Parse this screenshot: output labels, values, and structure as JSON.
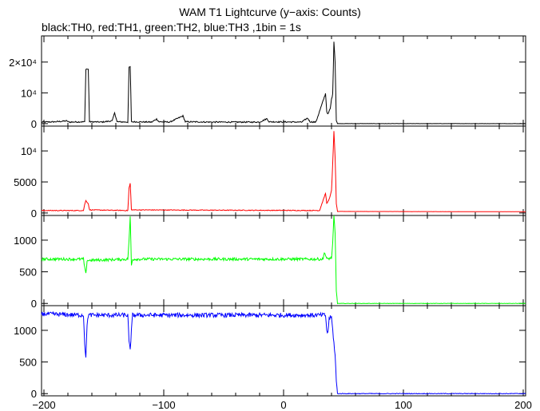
{
  "chart_data": {
    "type": "line",
    "title": "WAM T1 Lightcurve (y−axis: Counts)",
    "subtitle": "black:TH0, red:TH1, green:TH2, blue:TH3 ,1bin = 1s",
    "xlim": [
      -202,
      202
    ],
    "x_ticks": [
      -200,
      -100,
      0,
      100,
      200
    ],
    "x_tick_labels": [
      "−200",
      "−100",
      "0",
      "100",
      "200"
    ],
    "panels": [
      {
        "name": "TH0",
        "color": "#000000",
        "ylim": [
          -800,
          28500
        ],
        "y_ticks": [
          0,
          10000,
          20000
        ],
        "y_tick_labels": [
          "0",
          "10⁴",
          "2×10⁴"
        ],
        "baseline": 500,
        "noise": 200,
        "postlevel": 0,
        "points": [
          [
            -202,
            500
          ],
          [
            -190,
            600
          ],
          [
            -181,
            900
          ],
          [
            -179,
            500
          ],
          [
            -166,
            600
          ],
          [
            -165,
            17800
          ],
          [
            -163,
            17600
          ],
          [
            -162,
            600
          ],
          [
            -152,
            500
          ],
          [
            -143,
            900
          ],
          [
            -141,
            3600
          ],
          [
            -139,
            600
          ],
          [
            -130,
            500
          ],
          [
            -129,
            18200
          ],
          [
            -128,
            18500
          ],
          [
            -127,
            600
          ],
          [
            -110,
            500
          ],
          [
            -106,
            1500
          ],
          [
            -104,
            600
          ],
          [
            -95,
            500
          ],
          [
            -84,
            2500
          ],
          [
            -82,
            600
          ],
          [
            -60,
            500
          ],
          [
            -45,
            500
          ],
          [
            -20,
            500
          ],
          [
            -14,
            1600
          ],
          [
            -12,
            600
          ],
          [
            15,
            500
          ],
          [
            20,
            1800
          ],
          [
            22,
            600
          ],
          [
            27,
            500
          ],
          [
            35,
            9800
          ],
          [
            36,
            4000
          ],
          [
            37,
            3000
          ],
          [
            39,
            5000
          ],
          [
            40,
            8000
          ],
          [
            41,
            9600
          ],
          [
            42,
            26800
          ],
          [
            43,
            20000
          ],
          [
            44,
            1000
          ],
          [
            45,
            0
          ],
          [
            202,
            0
          ]
        ]
      },
      {
        "name": "TH1",
        "color": "#ff0000",
        "ylim": [
          -400,
          14000
        ],
        "y_ticks": [
          0,
          5000,
          10000
        ],
        "y_tick_labels": [
          "0",
          "5000",
          "10⁴"
        ],
        "baseline": 400,
        "noise": 60,
        "postlevel": 200,
        "points": [
          [
            -202,
            400
          ],
          [
            -167,
            400
          ],
          [
            -166,
            1400
          ],
          [
            -165,
            2000
          ],
          [
            -163,
            1500
          ],
          [
            -162,
            500
          ],
          [
            -130,
            400
          ],
          [
            -129,
            4000
          ],
          [
            -128,
            4800
          ],
          [
            -127,
            500
          ],
          [
            30,
            400
          ],
          [
            35,
            3200
          ],
          [
            36,
            1500
          ],
          [
            38,
            2200
          ],
          [
            40,
            3600
          ],
          [
            41,
            8000
          ],
          [
            42,
            13200
          ],
          [
            43,
            9000
          ],
          [
            44,
            1500
          ],
          [
            45,
            250
          ],
          [
            202,
            200
          ]
        ]
      },
      {
        "name": "TH2",
        "color": "#00ff00",
        "ylim": [
          -35,
          1390
        ],
        "y_ticks": [
          0,
          500,
          1000
        ],
        "y_tick_labels": [
          "0",
          "500",
          "1000"
        ],
        "baseline": 700,
        "noise": 22,
        "postlevel": 0,
        "points": [
          [
            -202,
            700
          ],
          [
            -167,
            700
          ],
          [
            -166,
            560
          ],
          [
            -165,
            460
          ],
          [
            -164,
            680
          ],
          [
            -130,
            700
          ],
          [
            -129,
            1000
          ],
          [
            -128,
            1360
          ],
          [
            -127,
            600
          ],
          [
            -126,
            700
          ],
          [
            33,
            700
          ],
          [
            34,
            820
          ],
          [
            35,
            760
          ],
          [
            36,
            700
          ],
          [
            40,
            720
          ],
          [
            41,
            950
          ],
          [
            42,
            1380
          ],
          [
            43,
            1100
          ],
          [
            44,
            200
          ],
          [
            45,
            0
          ],
          [
            202,
            0
          ]
        ]
      },
      {
        "name": "TH3",
        "color": "#0000ff",
        "ylim": [
          -35,
          1390
        ],
        "y_ticks": [
          0,
          500,
          1000
        ],
        "y_tick_labels": [
          "0",
          "500",
          "1000"
        ],
        "baseline": 1240,
        "noise": 35,
        "postlevel": 0,
        "points": [
          [
            -202,
            1260
          ],
          [
            -167,
            1240
          ],
          [
            -166,
            800
          ],
          [
            -165,
            560
          ],
          [
            -164,
            1100
          ],
          [
            -163,
            1240
          ],
          [
            -130,
            1240
          ],
          [
            -129,
            800
          ],
          [
            -128,
            700
          ],
          [
            -127,
            1000
          ],
          [
            -126,
            1240
          ],
          [
            35,
            1240
          ],
          [
            36,
            1000
          ],
          [
            37,
            950
          ],
          [
            38,
            1200
          ],
          [
            40,
            1200
          ],
          [
            41,
            1000
          ],
          [
            42,
            800
          ],
          [
            43,
            600
          ],
          [
            44,
            200
          ],
          [
            45,
            0
          ],
          [
            202,
            0
          ]
        ]
      }
    ]
  }
}
